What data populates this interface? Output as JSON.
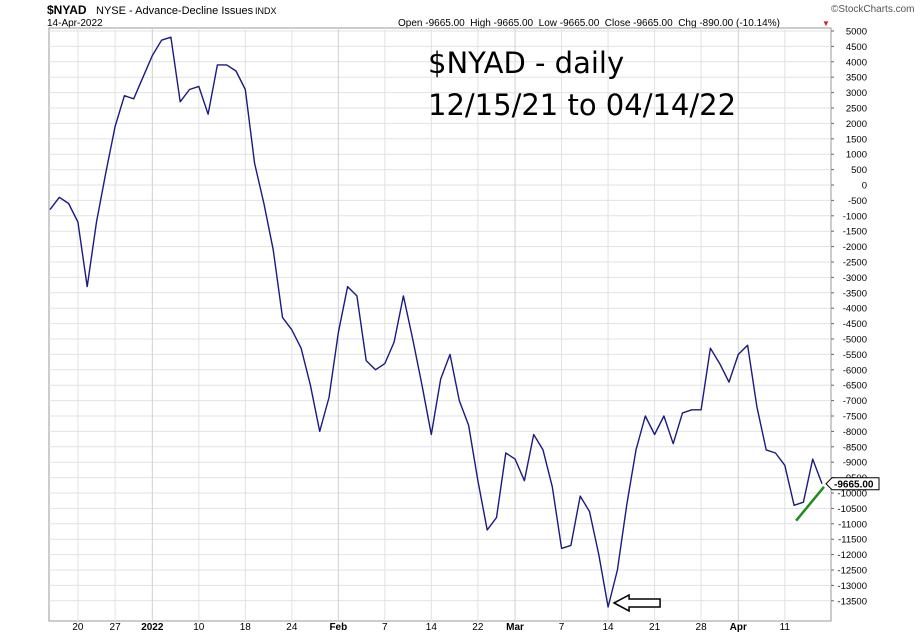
{
  "header": {
    "symbol": "$NYAD",
    "description": "NYSE - Advance-Decline Issues",
    "exchange": "INDX",
    "date": "14-Apr-2022",
    "ohlc": "Open -9665.00  High -9665.00  Low -9665.00  Close -9665.00  Chg -890.00 (-10.14%)",
    "change_marker": "▼",
    "brand": "©StockCharts.com"
  },
  "annotation": {
    "line1": "$NYAD - daily",
    "line2": "12/15/21 to 04/14/22"
  },
  "last_value_label": "-9665.00",
  "colors": {
    "series_line": "#1a1a80",
    "trend_line": "#1e8c1e",
    "down_marker": "#cc2222",
    "grid": "#e2e2e2"
  },
  "chart_data": {
    "type": "line",
    "title": "",
    "xlabel": "",
    "ylabel": "",
    "ylim": [
      -14000,
      5000
    ],
    "yticks": [
      5000,
      4500,
      4000,
      3500,
      3000,
      2500,
      2000,
      1500,
      1000,
      500,
      0,
      -500,
      -1000,
      -1500,
      -2000,
      -2500,
      -3000,
      -3500,
      -4000,
      -4500,
      -5000,
      -5500,
      -6000,
      -6500,
      -7000,
      -7500,
      -8000,
      -8500,
      -9000,
      -9500,
      -10000,
      -10500,
      -11000,
      -11500,
      -12000,
      -12500,
      -13000,
      -13500
    ],
    "xticks": [
      {
        "label": "20",
        "index": 3,
        "bold": false
      },
      {
        "label": "27",
        "index": 7,
        "bold": false
      },
      {
        "label": "2022",
        "index": 11,
        "bold": true
      },
      {
        "label": "10",
        "index": 16,
        "bold": false
      },
      {
        "label": "18",
        "index": 21,
        "bold": false
      },
      {
        "label": "24",
        "index": 26,
        "bold": false
      },
      {
        "label": "Feb",
        "index": 31,
        "bold": true
      },
      {
        "label": "7",
        "index": 36,
        "bold": false
      },
      {
        "label": "14",
        "index": 41,
        "bold": false
      },
      {
        "label": "22",
        "index": 46,
        "bold": false
      },
      {
        "label": "Mar",
        "index": 50,
        "bold": true
      },
      {
        "label": "7",
        "index": 55,
        "bold": false
      },
      {
        "label": "14",
        "index": 60,
        "bold": false
      },
      {
        "label": "21",
        "index": 65,
        "bold": false
      },
      {
        "label": "28",
        "index": 70,
        "bold": false
      },
      {
        "label": "Apr",
        "index": 74,
        "bold": true
      },
      {
        "label": "11",
        "index": 79,
        "bold": false
      }
    ],
    "series": [
      {
        "name": "$NYAD",
        "values": [
          -800,
          -400,
          -600,
          -1200,
          -3300,
          -1200,
          400,
          1900,
          2900,
          2800,
          3500,
          4200,
          4700,
          4800,
          2700,
          3100,
          3200,
          2300,
          3900,
          3900,
          3700,
          3100,
          700,
          -600,
          -2100,
          -4300,
          -4700,
          -5300,
          -6500,
          -8000,
          -6900,
          -4800,
          -3300,
          -3600,
          -5700,
          -6000,
          -5800,
          -5100,
          -3600,
          -5000,
          -6500,
          -8100,
          -6300,
          -5500,
          -7000,
          -7800,
          -9600,
          -11200,
          -10800,
          -8700,
          -8900,
          -9600,
          -8100,
          -8600,
          -9800,
          -11800,
          -11700,
          -10100,
          -10600,
          -12000,
          -13700,
          -12500,
          -10400,
          -8600,
          -7500,
          -8100,
          -7500,
          -8400,
          -7400,
          -7300,
          -7300,
          -5300,
          -5800,
          -6400,
          -5500,
          -5200,
          -7200,
          -8600,
          -8700,
          -9100,
          -10400,
          -10300,
          -8900,
          -9700
        ],
        "color": "#1a1a80"
      }
    ],
    "trend_line": {
      "from_index": 80,
      "from_value": -10900,
      "to_index": 83,
      "to_value": -9800,
      "color": "#1e8c1e"
    },
    "arrow_marker": {
      "index": 60,
      "value": -13700,
      "direction": "left"
    },
    "grid": true,
    "legend": "none"
  }
}
